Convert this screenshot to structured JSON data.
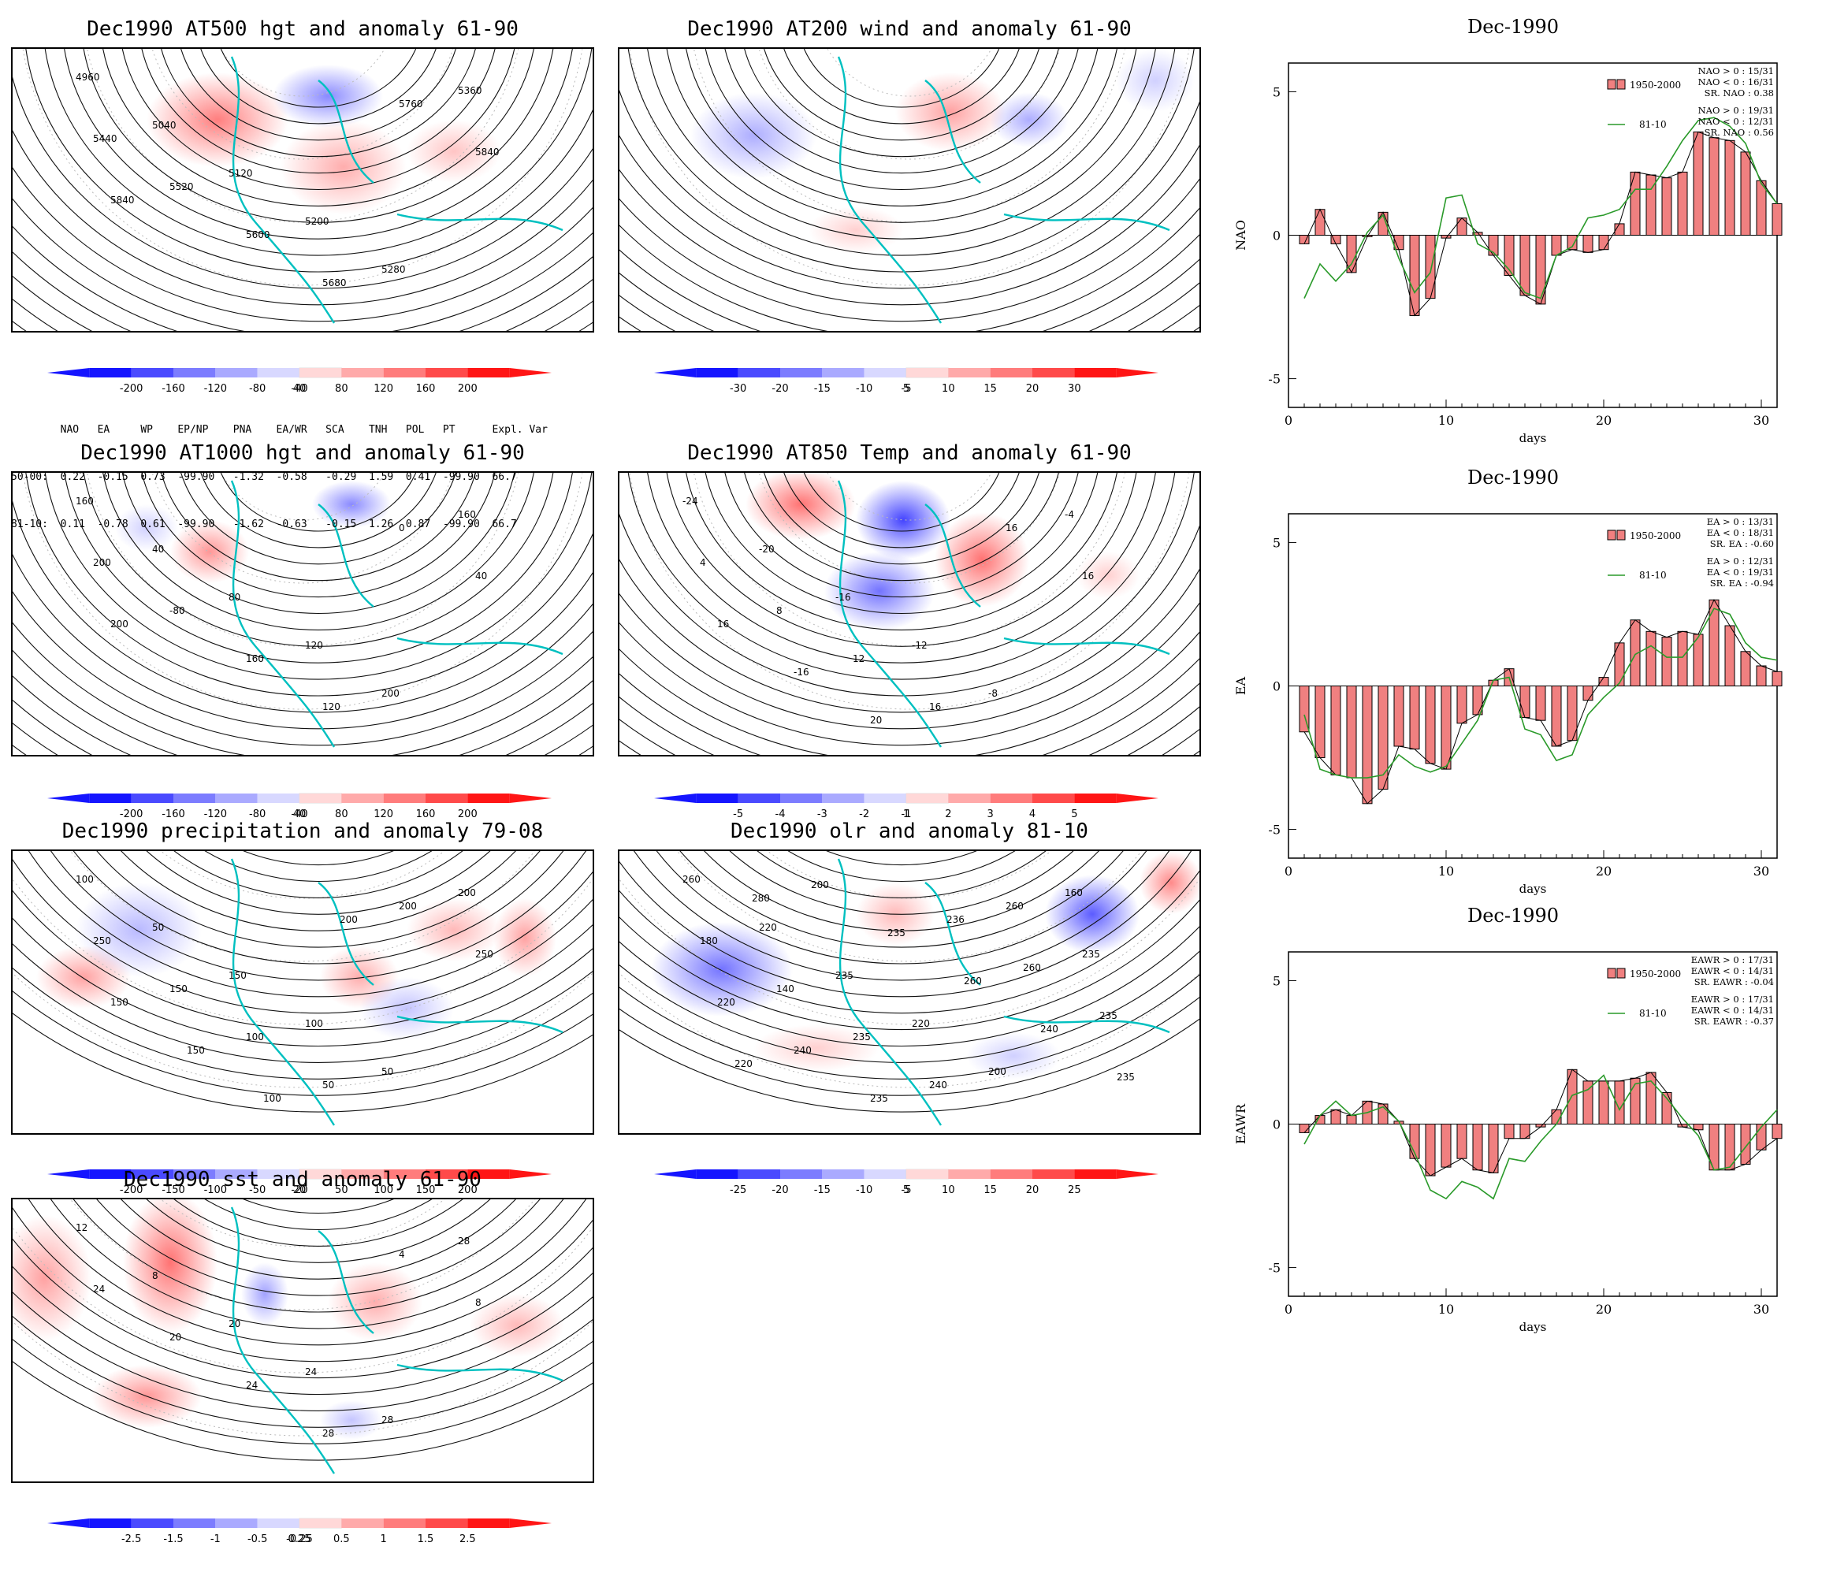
{
  "maps": [
    {
      "id": "hgt500",
      "title": "Dec1990 AT500 hgt and anomaly 61-90",
      "colorbar": [
        "-200",
        "-160",
        "-120",
        "-80",
        "-40",
        "40",
        "80",
        "120",
        "160",
        "200"
      ],
      "contour_labels": [
        "4960",
        "5040",
        "5120",
        "5200",
        "5280",
        "5360",
        "5440",
        "5520",
        "5600",
        "5680",
        "5760",
        "5840",
        "5840"
      ]
    },
    {
      "id": "wind200",
      "title": "Dec1990 AT200 wind and anomaly 61-90",
      "colorbar": [
        "-30",
        "-20",
        "-15",
        "-10",
        "-5",
        "5",
        "10",
        "15",
        "20",
        "30"
      ],
      "contour_labels": []
    },
    {
      "id": "hgt1000",
      "title": "Dec1990 AT1000 hgt and anomaly 61-90",
      "colorbar": [
        "-200",
        "-160",
        "-120",
        "-80",
        "-40",
        "40",
        "80",
        "120",
        "160",
        "200"
      ],
      "contour_labels": [
        "160",
        "40",
        "80",
        "120",
        "200",
        "160",
        "200",
        "-80",
        "160",
        "120",
        "0",
        "40",
        "200"
      ]
    },
    {
      "id": "temp850",
      "title": "Dec1990 AT850 Temp and anomaly 61-90",
      "colorbar": [
        "-5",
        "-4",
        "-3",
        "-2",
        "-1",
        "1",
        "2",
        "3",
        "4",
        "5"
      ],
      "contour_labels": [
        "-24",
        "-20",
        "-16",
        "-12",
        "-8",
        "-4",
        "4",
        "8",
        "12",
        "16",
        "16",
        "16",
        "16",
        "-16",
        "20"
      ]
    },
    {
      "id": "precip",
      "title": "Dec1990 precipitation and anomaly 79-08",
      "colorbar": [
        "-200",
        "-150",
        "-100",
        "-50",
        "-20",
        "20",
        "50",
        "100",
        "150",
        "200"
      ],
      "contour_labels": [
        "100",
        "50",
        "150",
        "100",
        "50",
        "200",
        "250",
        "150",
        "100",
        "50",
        "200",
        "250",
        "150",
        "150",
        "100",
        "200"
      ]
    },
    {
      "id": "olr",
      "title": "Dec1990 olr and anomaly 81-10",
      "colorbar": [
        "-25",
        "-20",
        "-15",
        "-10",
        "-5",
        "5",
        "10",
        "15",
        "20",
        "25"
      ],
      "contour_labels": [
        "260",
        "220",
        "235",
        "220",
        "200",
        "160",
        "180",
        "140",
        "235",
        "240",
        "260",
        "235",
        "220",
        "240",
        "235",
        "236",
        "260",
        "235",
        "220",
        "200",
        "235",
        "260",
        "240",
        "235",
        "280"
      ]
    },
    {
      "id": "sst",
      "title": "Dec1990 sst and anomaly 61-90",
      "colorbar": [
        "-2.5",
        "-1.5",
        "-1",
        "-0.5",
        "-0.25",
        "0.25",
        "0.5",
        "1",
        "1.5",
        "2.5"
      ],
      "contour_labels": [
        "12",
        "8",
        "20",
        "24",
        "28",
        "28",
        "24",
        "20",
        "24",
        "28",
        "4",
        "8"
      ]
    }
  ],
  "teleconnections": {
    "header": [
      "",
      "NAO",
      "EA",
      "WP",
      "EP/NP",
      "PNA",
      "EA/WR",
      "SCA",
      "TNH",
      "POL",
      "PT",
      "Expl. Var."
    ],
    "rows": [
      {
        "label": "50-00:",
        "values": [
          "0.22",
          "-0.15",
          "0.73",
          "-99.90",
          "-1.32",
          "-0.58",
          "-0.29",
          "1.59",
          "0.41",
          "-99.90",
          "66.7"
        ]
      },
      {
        "label": "81-10:",
        "values": [
          "0.11",
          "-0.78",
          "0.61",
          "-99.90",
          "-1.62",
          "-0.63",
          "-0.15",
          "1.26",
          "0.87",
          "-99.90",
          "66.7"
        ]
      }
    ]
  },
  "colors": {
    "blue": "#1515ff",
    "red": "#ff1515",
    "coast": "#00c0c0",
    "bar": "#f08080",
    "line_green": "#2a9a2a"
  },
  "chart_data": [
    {
      "type": "bar",
      "id": "nao",
      "title": "Dec-1990",
      "ylabel": "NAO",
      "xlabel": "days",
      "x": [
        1,
        2,
        3,
        4,
        5,
        6,
        7,
        8,
        9,
        10,
        11,
        12,
        13,
        14,
        15,
        16,
        17,
        18,
        19,
        20,
        21,
        22,
        23,
        24,
        25,
        26,
        27,
        28,
        29,
        30,
        31
      ],
      "series": [
        {
          "name": "1950-2000",
          "values": [
            -0.3,
            0.9,
            -0.3,
            -1.3,
            -0.05,
            0.8,
            -0.5,
            -2.8,
            -2.2,
            -0.1,
            0.6,
            0.1,
            -0.7,
            -1.4,
            -2.1,
            -2.4,
            -0.7,
            -0.5,
            -0.6,
            -0.5,
            0.4,
            2.2,
            2.1,
            2.0,
            2.2,
            3.6,
            3.4,
            3.3,
            2.9,
            1.9,
            1.1
          ]
        },
        {
          "name": "81-10",
          "values": [
            -2.2,
            -1.0,
            -1.6,
            -1.0,
            0.1,
            0.7,
            -0.8,
            -2.0,
            -1.3,
            1.3,
            1.4,
            -0.3,
            -0.6,
            -1.2,
            -2.0,
            -2.2,
            -0.7,
            -0.4,
            0.6,
            0.7,
            0.9,
            1.6,
            1.6,
            2.4,
            3.3,
            4.0,
            4.1,
            3.8,
            3.2,
            1.8,
            1.1
          ]
        }
      ],
      "stats": [
        "NAO > 0 : 15/31",
        "NAO < 0 : 16/31",
        "SR. NAO : 0.38",
        "NAO > 0 : 19/31",
        "NAO < 0 : 12/31",
        "SR. NAO : 0.56"
      ],
      "ylim": [
        -6,
        6
      ],
      "xlim": [
        0,
        31
      ],
      "yticks": [
        "5",
        "0",
        "-5"
      ],
      "xticks": [
        "0",
        "10",
        "20",
        "30"
      ]
    },
    {
      "type": "bar",
      "id": "ea",
      "title": "Dec-1990",
      "ylabel": "EA",
      "xlabel": "days",
      "x": [
        1,
        2,
        3,
        4,
        5,
        6,
        7,
        8,
        9,
        10,
        11,
        12,
        13,
        14,
        15,
        16,
        17,
        18,
        19,
        20,
        21,
        22,
        23,
        24,
        25,
        26,
        27,
        28,
        29,
        30,
        31
      ],
      "series": [
        {
          "name": "1950-2000",
          "values": [
            -1.6,
            -2.5,
            -3.1,
            -3.2,
            -4.1,
            -3.6,
            -2.1,
            -2.2,
            -2.7,
            -2.9,
            -1.3,
            -1.0,
            0.2,
            0.6,
            -1.1,
            -1.2,
            -2.1,
            -1.9,
            -0.5,
            0.3,
            1.5,
            2.3,
            1.9,
            1.7,
            1.9,
            1.8,
            3.0,
            2.1,
            1.2,
            0.7,
            0.5
          ]
        },
        {
          "name": "81-10",
          "values": [
            -1.0,
            -2.9,
            -3.1,
            -3.2,
            -3.2,
            -3.1,
            -2.4,
            -2.8,
            -3.0,
            -2.8,
            -2.0,
            -1.2,
            0.2,
            0.3,
            -1.5,
            -1.7,
            -2.6,
            -2.4,
            -1.0,
            -0.4,
            0.1,
            1.1,
            1.4,
            1.0,
            1.0,
            1.7,
            2.7,
            2.5,
            1.5,
            1.0,
            0.9
          ]
        }
      ],
      "stats": [
        "EA > 0 : 13/31",
        "EA < 0 : 18/31",
        "SR. EA : -0.60",
        "EA > 0 : 12/31",
        "EA < 0 : 19/31",
        "SR. EA : -0.94"
      ],
      "ylim": [
        -6,
        6
      ],
      "xlim": [
        0,
        31
      ],
      "yticks": [
        "5",
        "0",
        "-5"
      ],
      "xticks": [
        "0",
        "10",
        "20",
        "30"
      ]
    },
    {
      "type": "bar",
      "id": "eawr",
      "title": "Dec-1990",
      "ylabel": "EAWR",
      "xlabel": "days",
      "x": [
        1,
        2,
        3,
        4,
        5,
        6,
        7,
        8,
        9,
        10,
        11,
        12,
        13,
        14,
        15,
        16,
        17,
        18,
        19,
        20,
        21,
        22,
        23,
        24,
        25,
        26,
        27,
        28,
        29,
        30,
        31
      ],
      "series": [
        {
          "name": "1950-2000",
          "values": [
            -0.3,
            0.3,
            0.5,
            0.3,
            0.8,
            0.7,
            0.1,
            -1.2,
            -1.8,
            -1.5,
            -1.2,
            -1.6,
            -1.7,
            -0.5,
            -0.5,
            -0.1,
            0.5,
            1.9,
            1.5,
            1.5,
            1.5,
            1.6,
            1.8,
            1.1,
            -0.1,
            -0.2,
            -1.6,
            -1.6,
            -1.4,
            -0.9,
            -0.5
          ]
        },
        {
          "name": "81-10",
          "values": [
            -0.7,
            0.3,
            0.8,
            0.3,
            0.4,
            0.6,
            0.1,
            -1.0,
            -2.3,
            -2.6,
            -2.0,
            -2.2,
            -2.6,
            -1.2,
            -1.3,
            -0.6,
            0.0,
            1.0,
            1.2,
            1.7,
            0.5,
            1.4,
            1.5,
            0.9,
            0.2,
            -0.4,
            -1.6,
            -1.5,
            -0.8,
            -0.1,
            0.5
          ]
        }
      ],
      "stats": [
        "EAWR > 0 : 17/31",
        "EAWR < 0 : 14/31",
        "SR. EAWR : -0.04",
        "EAWR > 0 : 17/31",
        "EAWR < 0 : 14/31",
        "SR. EAWR : -0.37"
      ],
      "ylim": [
        -6,
        6
      ],
      "xlim": [
        0,
        31
      ],
      "yticks": [
        "5",
        "0",
        "-5"
      ],
      "xticks": [
        "0",
        "10",
        "20",
        "30"
      ]
    }
  ]
}
